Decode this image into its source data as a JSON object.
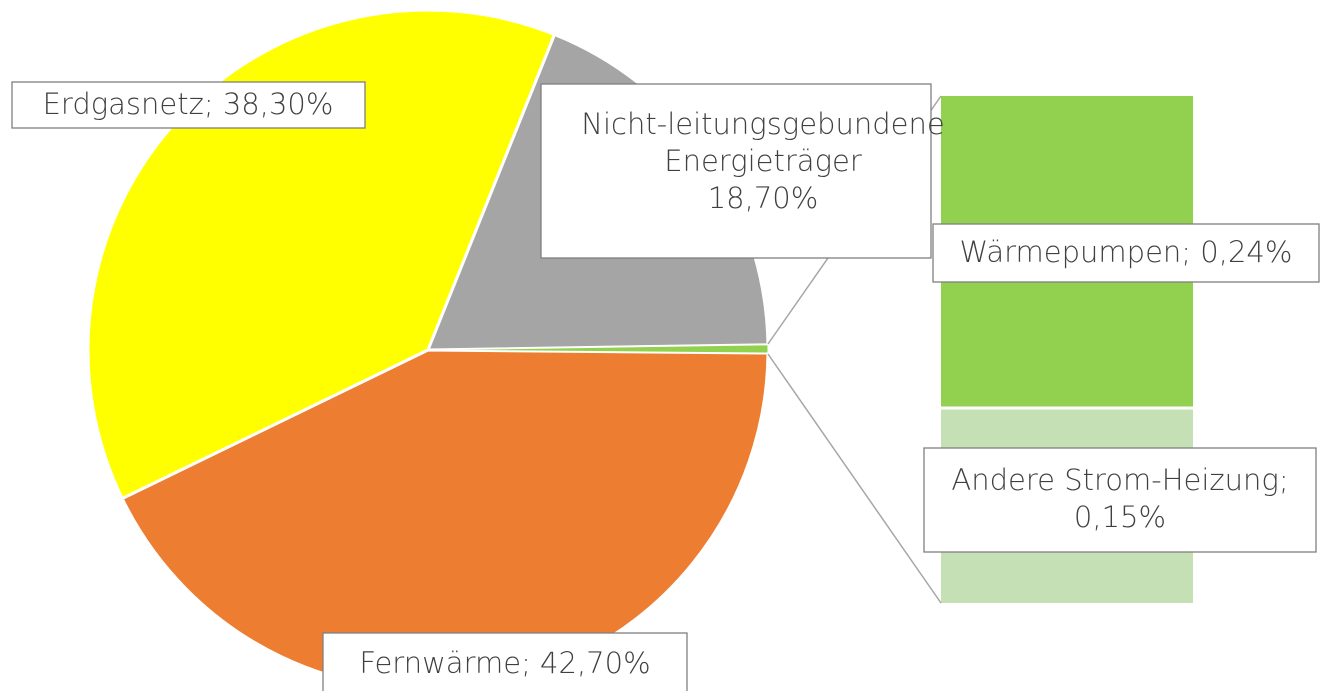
{
  "chart_data": {
    "type": "pie-of-bar",
    "pie": {
      "values": [
        42.7,
        38.3,
        18.7
      ],
      "value_labels": [
        "Fernwärme; 42,70%",
        "Erdgasnetz; 38,30%",
        "Nicht-leitungsgebundene\nEnergieträger\n18,70%"
      ],
      "colors": [
        "#ed7d31",
        "#ffff00",
        "#a5a5a5"
      ]
    },
    "bar": {
      "values": [
        0.24,
        0.15
      ],
      "value_labels": [
        "Wärmepumpen; 0,24%",
        "Andere Strom-Heizung;\n0,15%"
      ],
      "colors": [
        "#92d050",
        "#c5e0b4"
      ]
    }
  }
}
